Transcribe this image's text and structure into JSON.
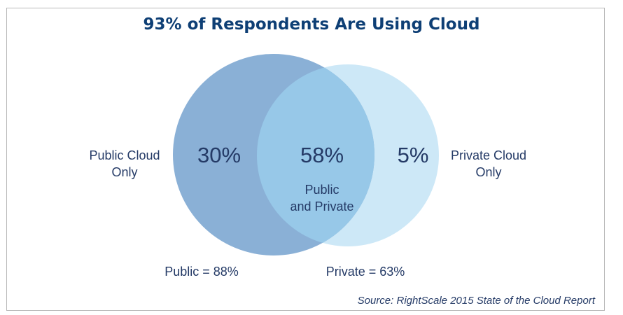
{
  "title": "93% of Respondents Are Using Cloud",
  "chart_data": {
    "type": "venn",
    "title": "93% of Respondents Are Using Cloud",
    "sets": [
      {
        "name": "Public",
        "total_label": "Public = 88%",
        "total": 88,
        "only_label": "Public Cloud Only",
        "only_value": "30%",
        "color": "#8ab0d6"
      },
      {
        "name": "Private",
        "total_label": "Private = 63%",
        "total": 63,
        "only_label": "Private Cloud Only",
        "only_value": "5%",
        "color": "#cde8f7"
      }
    ],
    "intersection": {
      "label_line1": "Public",
      "label_line2": "and Private",
      "value": "58%",
      "color": "#97c8e8"
    }
  },
  "labels": {
    "public_only_line1": "Public Cloud",
    "public_only_line2": "Only",
    "private_only_line1": "Private Cloud",
    "private_only_line2": "Only"
  },
  "source": "Source: RightScale 2015 State of the Cloud Report"
}
